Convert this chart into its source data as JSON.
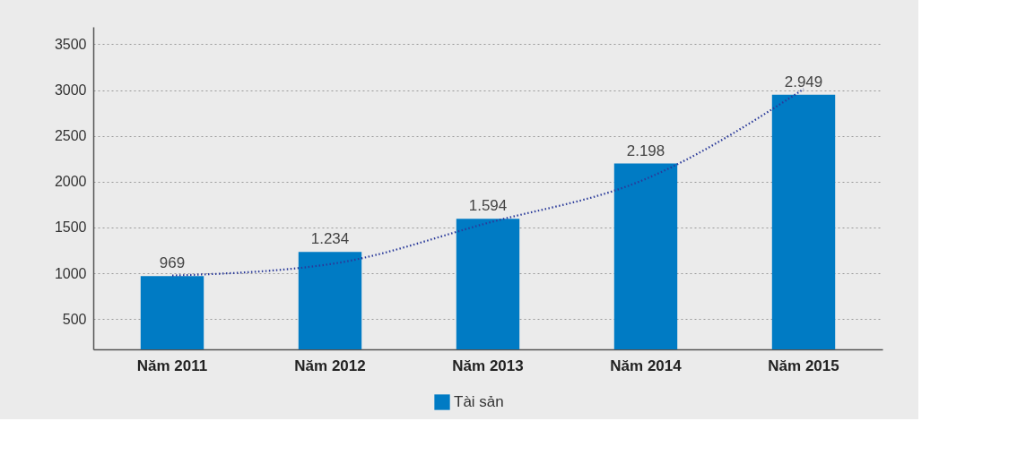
{
  "chart_data": {
    "type": "bar",
    "categories": [
      "Năm 2011",
      "Năm 2012",
      "Năm 2013",
      "Năm 2014",
      "Năm 2015"
    ],
    "series": [
      {
        "name": "Tài sản",
        "color": "#007bc4",
        "values": [
          969,
          1234,
          1594,
          2198,
          2949
        ],
        "value_labels": [
          "969",
          "1.234",
          "1.594",
          "2.198",
          "2.949"
        ]
      },
      {
        "type": "line",
        "color": "#2a3a9a",
        "line_style": "dotted",
        "values": [
          975,
          1100,
          1550,
          2030,
          3010
        ]
      }
    ],
    "ylim": [
      170,
      3690
    ],
    "yticks": [
      500,
      1000,
      1500,
      2000,
      2500,
      3000,
      3500
    ],
    "grid": "y",
    "legend": "bottom"
  }
}
